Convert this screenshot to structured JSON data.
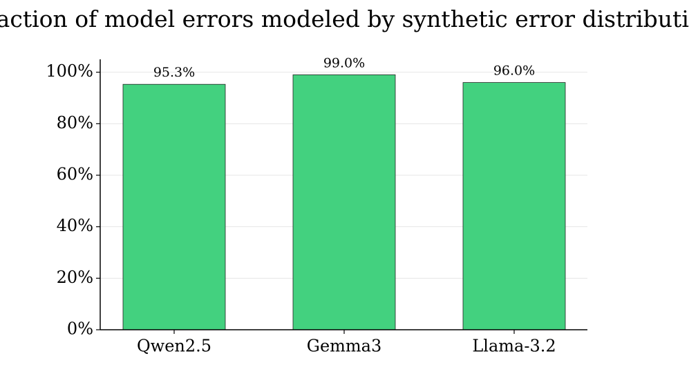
{
  "chart_data": {
    "type": "bar",
    "title": "Fraction of model errors modeled by synthetic error distribution",
    "categories": [
      "Qwen2.5",
      "Gemma3",
      "Llama-3.2"
    ],
    "values": [
      95.3,
      99.0,
      96.0
    ],
    "value_labels": [
      "95.3%",
      "99.0%",
      "96.0%"
    ],
    "color": "#43d17f",
    "ylim": [
      0,
      105
    ],
    "yticks": [
      {
        "value": 0,
        "label": "0%"
      },
      {
        "value": 20,
        "label": "20%"
      },
      {
        "value": 40,
        "label": "40%"
      },
      {
        "value": 60,
        "label": "60%"
      },
      {
        "value": 80,
        "label": "80%"
      },
      {
        "value": 100,
        "label": "100%"
      }
    ],
    "grid": true
  }
}
